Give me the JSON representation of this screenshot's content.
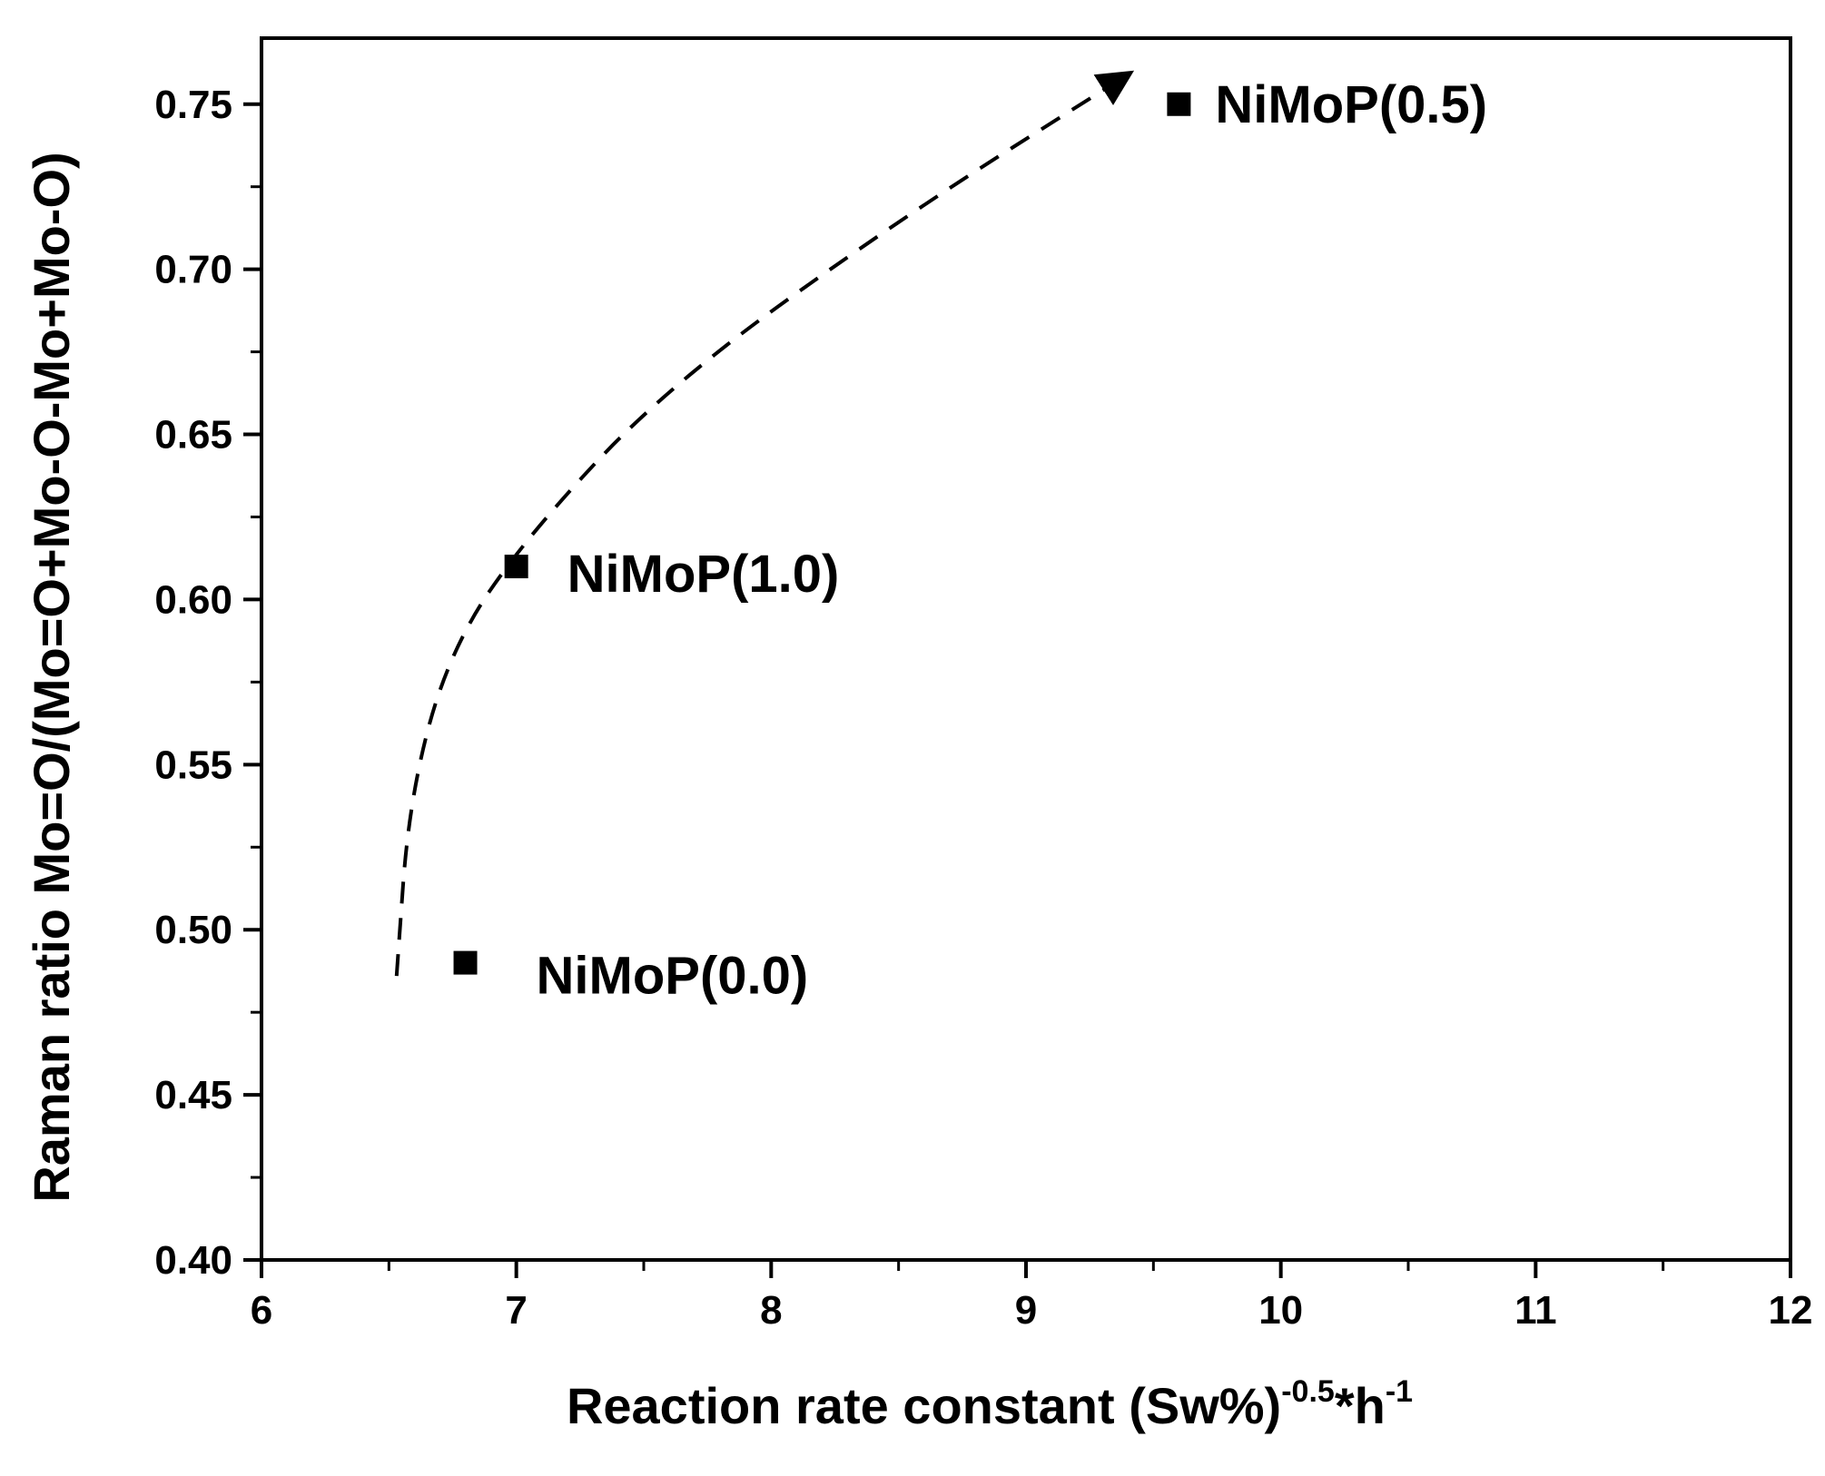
{
  "chart_data": {
    "type": "scatter",
    "title": "",
    "xlabel": {
      "main": "Reaction rate constant (Sw%)",
      "sup1": "-0.5",
      "mid": "*h",
      "sup2": "-1"
    },
    "ylabel": "Raman ratio Mo=O/(Mo=O+Mo-O-Mo+Mo-O)",
    "xlim": [
      6,
      12
    ],
    "ylim": [
      0.4,
      0.77
    ],
    "xticks": [
      6,
      7,
      8,
      9,
      10,
      11,
      12
    ],
    "xtick_labels": [
      "6",
      "7",
      "8",
      "9",
      "10",
      "11",
      "12"
    ],
    "yticks": [
      0.4,
      0.45,
      0.5,
      0.55,
      0.6,
      0.65,
      0.7,
      0.75
    ],
    "ytick_labels": [
      "0.40",
      "0.45",
      "0.50",
      "0.55",
      "0.60",
      "0.65",
      "0.70",
      "0.75"
    ],
    "grid": false,
    "points": [
      {
        "label": "NiMoP(0.0)",
        "x": 6.8,
        "y": 0.49
      },
      {
        "label": "NiMoP(1.0)",
        "x": 7.0,
        "y": 0.61
      },
      {
        "label": "NiMoP(0.5)",
        "x": 9.6,
        "y": 0.75
      }
    ],
    "trend_arrow": {
      "style": "dashed",
      "path": [
        [
          6.53,
          0.486
        ],
        [
          6.58,
          0.54
        ],
        [
          6.74,
          0.585
        ],
        [
          7.05,
          0.62
        ],
        [
          7.6,
          0.665
        ],
        [
          8.5,
          0.715
        ],
        [
          9.4,
          0.759
        ]
      ]
    }
  }
}
